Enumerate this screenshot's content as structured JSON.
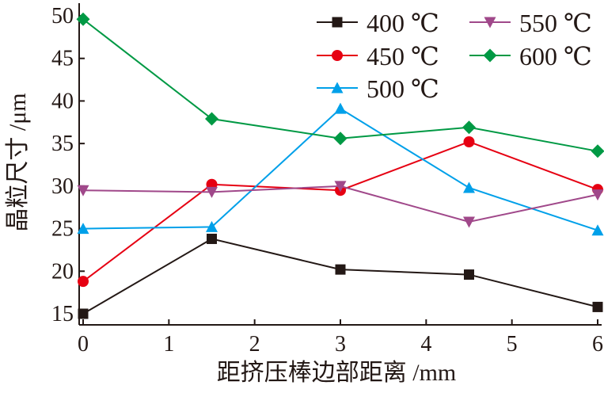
{
  "chart_data": {
    "type": "line",
    "title": "",
    "xlabel": "距挤压棒边部距离 /mm",
    "ylabel": "晶粒尺寸 /μm",
    "xlim": [
      0,
      6
    ],
    "ylim": [
      15,
      50
    ],
    "xticks": [
      "0",
      "1",
      "2",
      "3",
      "4",
      "5",
      "6"
    ],
    "yticks": [
      "15",
      "20",
      "25",
      "30",
      "35",
      "40",
      "45",
      "50"
    ],
    "grid": false,
    "legend_position": "top-right",
    "x": [
      0,
      1.5,
      3,
      4.5,
      6
    ],
    "series": [
      {
        "name": "400 ℃",
        "color": "#231815",
        "marker": "square",
        "values": [
          15.0,
          23.8,
          20.2,
          19.6,
          15.8
        ]
      },
      {
        "name": "450 ℃",
        "color": "#e60012",
        "marker": "circle",
        "values": [
          18.8,
          30.2,
          29.5,
          35.2,
          29.6
        ]
      },
      {
        "name": "500 ℃",
        "color": "#00a0e9",
        "marker": "triangle-up",
        "values": [
          25.0,
          25.2,
          39.1,
          29.8,
          24.8
        ]
      },
      {
        "name": "550 ℃",
        "color": "#a0488a",
        "marker": "triangle-down",
        "values": [
          29.5,
          29.3,
          30.0,
          25.8,
          29.0
        ]
      },
      {
        "name": "600 ℃",
        "color": "#009944",
        "marker": "diamond",
        "values": [
          49.6,
          37.9,
          35.6,
          36.9,
          34.1
        ]
      }
    ]
  }
}
